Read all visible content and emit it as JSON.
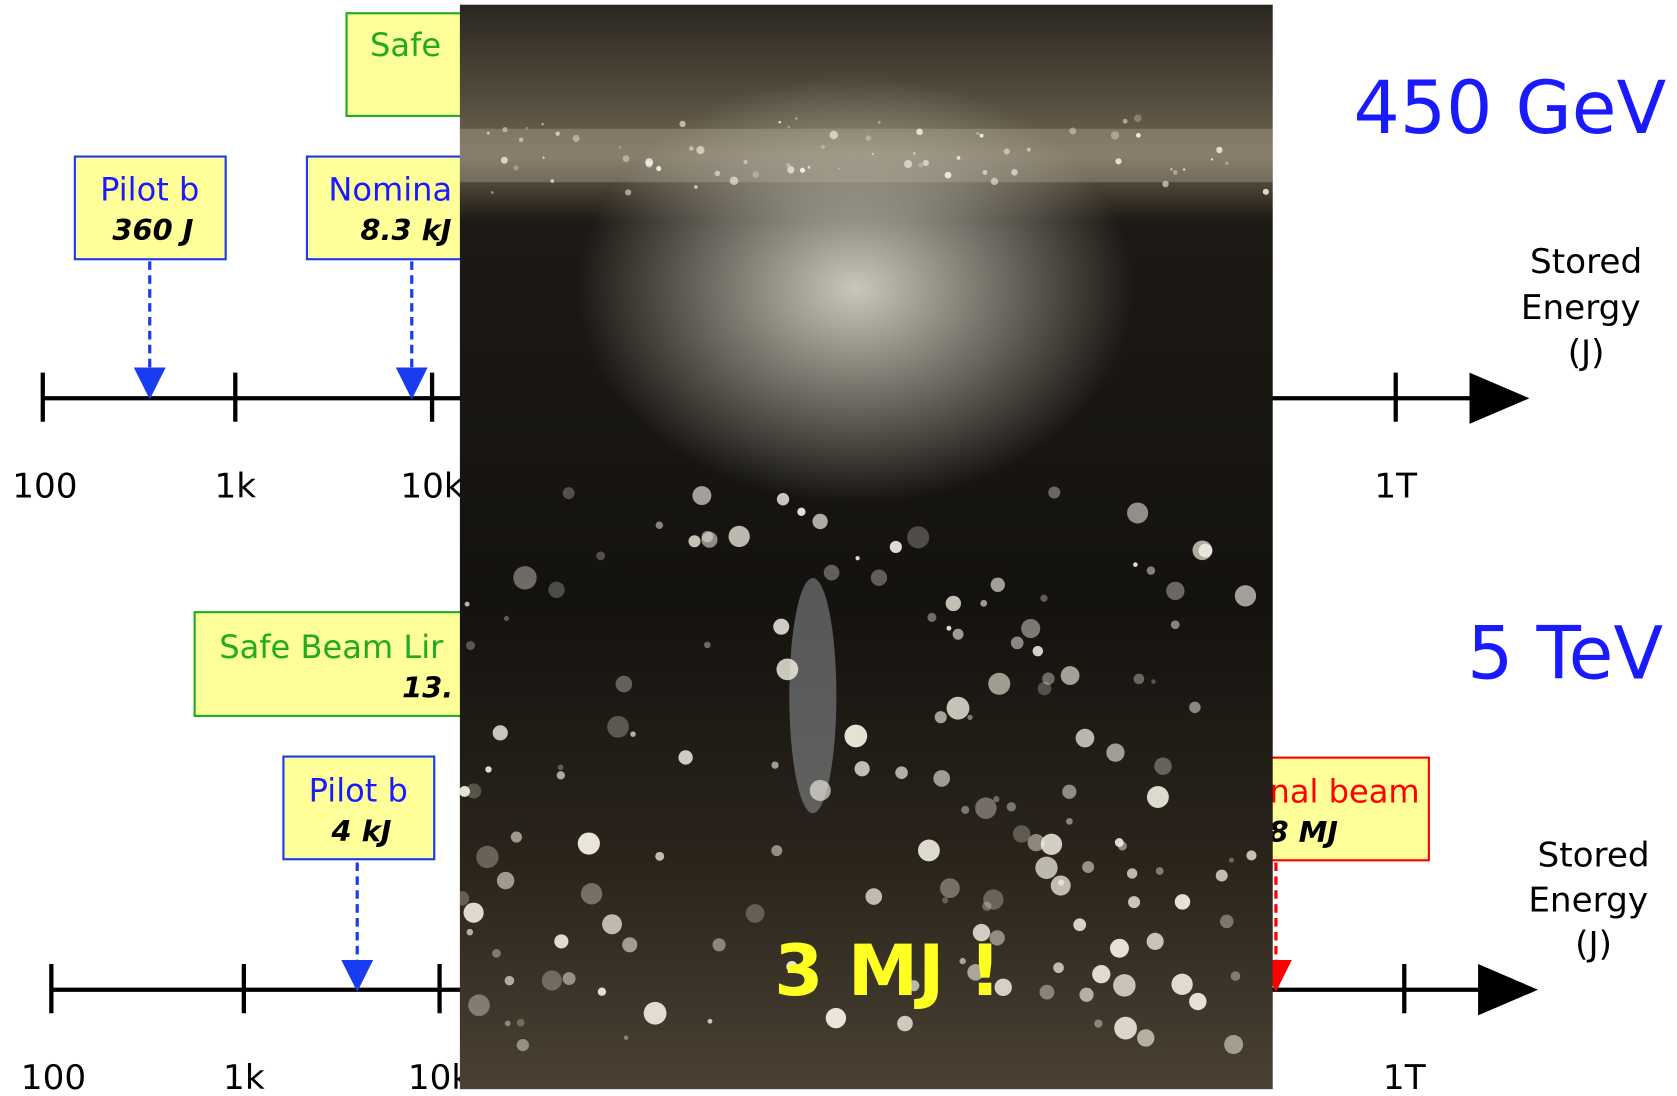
{
  "top": {
    "energy": "450 GeV",
    "axis_label": [
      "Stored",
      "Energy",
      "(J)"
    ],
    "ticks": [
      "100",
      "1k",
      "10k",
      "1T"
    ],
    "boxes": [
      {
        "title": "Safe"
      },
      {
        "title": "Pilot b",
        "value": "360 J"
      },
      {
        "title": "Nomina",
        "value": "8.3 kJ"
      }
    ]
  },
  "bottom": {
    "energy": "5 TeV",
    "axis_label": [
      "Stored",
      "Energy",
      "(J)"
    ],
    "ticks": [
      "100",
      "1k",
      "10k",
      "1T"
    ],
    "boxes": [
      {
        "title": "Safe Beam Lir",
        "value": "13."
      },
      {
        "title": "Pilot b",
        "value": "4 kJ"
      },
      {
        "title": "nal beam",
        "value": "8 MJ"
      }
    ]
  },
  "photo": {
    "caption": "3 MJ !"
  }
}
